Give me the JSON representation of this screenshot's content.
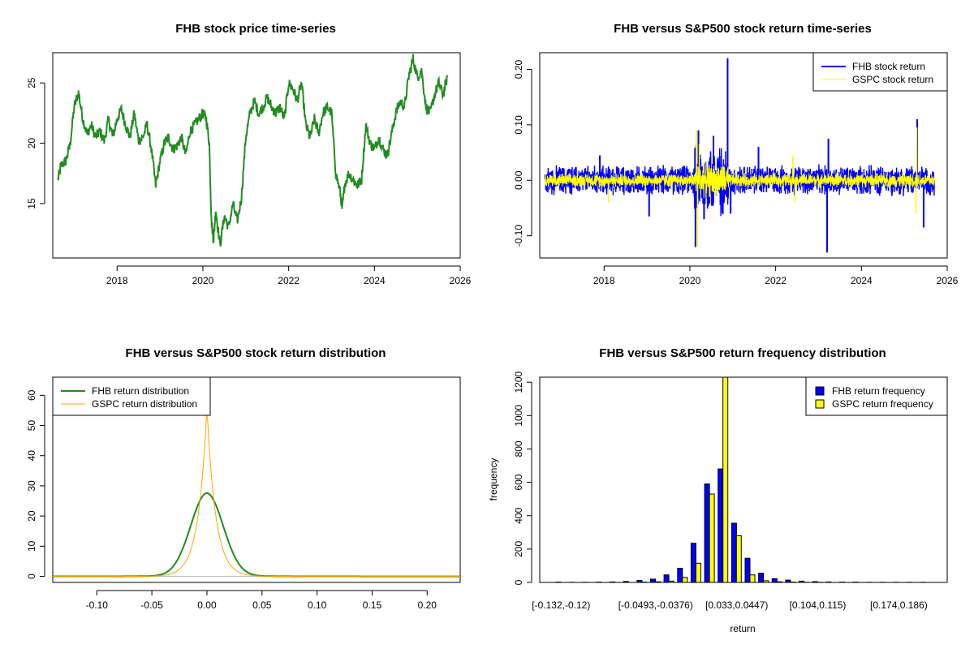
{
  "chart_data": [
    {
      "type": "line",
      "title": "FHB stock price time-series",
      "xlabel": "",
      "ylabel": "",
      "xlim": [
        2016.5,
        2026
      ],
      "ylim": [
        10.5,
        27.5
      ],
      "x_ticks": [
        2018,
        2020,
        2022,
        2024,
        2026
      ],
      "y_ticks": [
        15,
        20,
        25
      ],
      "grid": false,
      "series": [
        {
          "color": "#228B22",
          "x": [
            2016.62,
            2016.7,
            2016.8,
            2016.9,
            2017.0,
            2017.1,
            2017.2,
            2017.3,
            2017.4,
            2017.5,
            2017.6,
            2017.7,
            2017.8,
            2017.9,
            2018.0,
            2018.1,
            2018.2,
            2018.3,
            2018.4,
            2018.5,
            2018.6,
            2018.7,
            2018.8,
            2018.9,
            2019.0,
            2019.1,
            2019.2,
            2019.3,
            2019.4,
            2019.5,
            2019.6,
            2019.7,
            2019.8,
            2019.9,
            2020.0,
            2020.08,
            2020.15,
            2020.2,
            2020.25,
            2020.3,
            2020.4,
            2020.5,
            2020.6,
            2020.7,
            2020.8,
            2020.9,
            2021.0,
            2021.1,
            2021.2,
            2021.3,
            2021.4,
            2021.5,
            2021.6,
            2021.7,
            2021.8,
            2021.9,
            2022.0,
            2022.1,
            2022.2,
            2022.3,
            2022.4,
            2022.5,
            2022.6,
            2022.7,
            2022.8,
            2022.9,
            2023.0,
            2023.1,
            2023.2,
            2023.25,
            2023.3,
            2023.4,
            2023.5,
            2023.6,
            2023.7,
            2023.8,
            2023.9,
            2024.0,
            2024.1,
            2024.2,
            2024.3,
            2024.4,
            2024.5,
            2024.6,
            2024.7,
            2024.8,
            2024.9,
            2025.0,
            2025.1,
            2025.2,
            2025.3,
            2025.4,
            2025.5,
            2025.6,
            2025.7
          ],
          "values": [
            17.0,
            18.2,
            18.5,
            19.8,
            23.0,
            24.2,
            22.0,
            20.8,
            21.5,
            20.5,
            21.0,
            20.2,
            22.0,
            20.5,
            22.0,
            22.8,
            21.5,
            20.5,
            22.5,
            20.2,
            20.5,
            21.5,
            19.5,
            16.5,
            18.5,
            20.0,
            20.5,
            19.5,
            19.8,
            20.5,
            19.0,
            21.0,
            21.5,
            22.0,
            22.5,
            22.0,
            20.0,
            13.5,
            12.0,
            14.5,
            11.5,
            14.0,
            13.0,
            15.0,
            13.5,
            15.5,
            20.5,
            22.5,
            23.5,
            22.5,
            23.0,
            23.8,
            23.0,
            22.5,
            23.0,
            22.0,
            25.0,
            24.5,
            23.5,
            25.0,
            21.5,
            20.5,
            22.0,
            20.8,
            22.5,
            23.0,
            22.5,
            17.5,
            16.0,
            14.5,
            16.5,
            17.5,
            17.0,
            16.5,
            17.0,
            21.5,
            20.0,
            19.5,
            20.5,
            19.5,
            19.0,
            20.8,
            22.5,
            23.5,
            23.0,
            25.5,
            27.0,
            25.5,
            26.0,
            23.0,
            22.5,
            24.0,
            25.0,
            24.0,
            25.5
          ]
        }
      ]
    },
    {
      "type": "line",
      "title": "FHB versus S&P500 stock return time-series",
      "xlabel": "",
      "ylabel": "",
      "xlim": [
        2016.5,
        2026
      ],
      "ylim": [
        -0.14,
        0.23
      ],
      "x_ticks": [
        2018,
        2020,
        2022,
        2024,
        2026
      ],
      "y_ticks": [
        -0.1,
        0.0,
        0.1,
        0.2
      ],
      "y_tick_labels": [
        "-0.10",
        "0.00",
        "0.10",
        "0.20"
      ],
      "grid": false,
      "legend": "top-right",
      "series": [
        {
          "name": "FHB stock return",
          "color": "#0000FF",
          "x_start": 2016.62,
          "x_end": 2025.7,
          "calm_amplitude": 0.025,
          "spikes": [
            {
              "x": 2020.13,
              "value": -0.12
            },
            {
              "x": 2020.2,
              "value": 0.09
            },
            {
              "x": 2020.33,
              "value": -0.07
            },
            {
              "x": 2020.55,
              "value": 0.08
            },
            {
              "x": 2020.88,
              "value": 0.22
            },
            {
              "x": 2020.95,
              "value": -0.06
            },
            {
              "x": 2019.05,
              "value": -0.065
            },
            {
              "x": 2023.2,
              "value": -0.13
            },
            {
              "x": 2023.23,
              "value": 0.075
            },
            {
              "x": 2025.3,
              "value": 0.11
            },
            {
              "x": 2025.45,
              "value": -0.085
            },
            {
              "x": 2017.9,
              "value": 0.045
            },
            {
              "x": 2021.6,
              "value": 0.06
            }
          ]
        },
        {
          "name": "GSPC stock return",
          "color": "#FFFF00",
          "x_start": 2016.62,
          "x_end": 2025.7,
          "calm_amplitude": 0.012,
          "spikes": [
            {
              "x": 2020.15,
              "value": 0.09
            },
            {
              "x": 2020.18,
              "value": -0.12
            },
            {
              "x": 2020.22,
              "value": 0.065
            },
            {
              "x": 2025.29,
              "value": 0.095
            },
            {
              "x": 2025.27,
              "value": -0.06
            },
            {
              "x": 2018.1,
              "value": -0.04
            },
            {
              "x": 2022.4,
              "value": 0.045
            },
            {
              "x": 2022.45,
              "value": -0.04
            }
          ]
        }
      ]
    },
    {
      "type": "line",
      "title": "FHB versus S&P500 stock return distribution",
      "xlabel": "",
      "ylabel": "",
      "xlim": [
        -0.14,
        0.23
      ],
      "ylim": [
        -2,
        66
      ],
      "x_ticks": [
        -0.1,
        -0.05,
        0.0,
        0.05,
        0.1,
        0.15,
        0.2
      ],
      "x_tick_labels": [
        "-0.10",
        "-0.05",
        "0.00",
        "0.05",
        "0.10",
        "0.15",
        "0.20"
      ],
      "y_ticks": [
        0,
        10,
        20,
        30,
        40,
        50,
        60
      ],
      "grid": false,
      "legend": "top-left",
      "series": [
        {
          "name": "FHB return distribution",
          "color": "#228B22",
          "density": "normal",
          "peak": 27,
          "center": 0.0,
          "sd": 0.0148,
          "x_range": [
            -0.14,
            0.23
          ]
        },
        {
          "name": "GSPC return distribution",
          "color": "#FFA500",
          "density": "laplace",
          "peak": 56,
          "center": 0.0,
          "scale": 0.0079,
          "x_range": [
            -0.14,
            0.23
          ]
        }
      ]
    },
    {
      "type": "bar",
      "title": "FHB versus S&P500 return frequency distribution",
      "xlabel": "return",
      "ylabel": "frequency",
      "ylim": [
        0,
        1230
      ],
      "y_ticks": [
        0,
        200,
        400,
        600,
        800,
        1000,
        1200
      ],
      "categories": [
        "[-0.132,-0.12)",
        "",
        "",
        "",
        "",
        "",
        "",
        "[-0.0493,-0.0376)",
        "",
        "",
        "",
        "",
        "",
        "[0.033,0.0447)",
        "",
        "",
        "",
        "",
        "",
        "[0.104,0.115)",
        "",
        "",
        "",
        "",
        "",
        "[0.174,0.186)",
        "",
        ""
      ],
      "grid": false,
      "legend": "top-right",
      "series": [
        {
          "name": "FHB return frequency",
          "color": "#0000FF",
          "values": [
            2,
            1,
            1,
            2,
            3,
            6,
            12,
            20,
            45,
            85,
            235,
            590,
            680,
            355,
            145,
            55,
            22,
            14,
            8,
            5,
            3,
            2,
            2,
            1,
            1,
            1,
            1,
            1
          ]
        },
        {
          "name": "GSPC return frequency",
          "color": "#FFFF00",
          "values": [
            0,
            0,
            0,
            0,
            0,
            0,
            2,
            4,
            8,
            30,
            115,
            530,
            1230,
            280,
            45,
            10,
            4,
            2,
            1,
            1,
            0,
            0,
            0,
            0,
            0,
            0,
            0,
            0
          ]
        }
      ]
    }
  ]
}
